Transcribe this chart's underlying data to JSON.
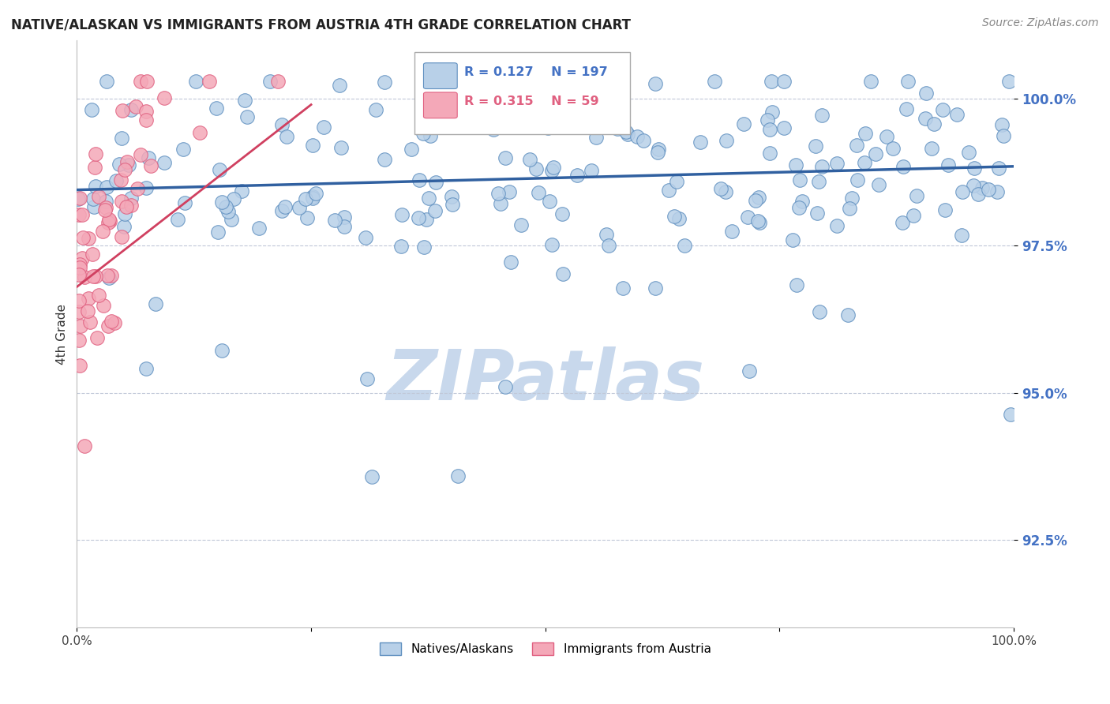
{
  "title": "NATIVE/ALASKAN VS IMMIGRANTS FROM AUSTRIA 4TH GRADE CORRELATION CHART",
  "source": "Source: ZipAtlas.com",
  "ylabel": "4th Grade",
  "xlim": [
    0.0,
    1.0
  ],
  "ylim": [
    0.91,
    1.01
  ],
  "yticks": [
    0.925,
    0.95,
    0.975,
    1.0
  ],
  "ytick_labels": [
    "92.5%",
    "95.0%",
    "97.5%",
    "100.0%"
  ],
  "xtick_labels_left": "0.0%",
  "xtick_labels_right": "100.0%",
  "blue_R": 0.127,
  "blue_N": 197,
  "pink_R": 0.315,
  "pink_N": 59,
  "blue_color": "#b8d0e8",
  "pink_color": "#f4a8b8",
  "blue_edge_color": "#6090c0",
  "pink_edge_color": "#e06080",
  "blue_line_color": "#3060a0",
  "pink_line_color": "#d04060",
  "tick_label_color": "#4472c4",
  "legend_label_blue": "Natives/Alaskans",
  "legend_label_pink": "Immigrants from Austria",
  "watermark_text": "ZIPatlas",
  "watermark_color": "#c8d8ec",
  "background_color": "#ffffff",
  "grid_color": "#c0c8d8",
  "title_color": "#222222",
  "source_color": "#888888",
  "blue_trend_start_y": 0.9845,
  "blue_trend_end_y": 0.9885,
  "pink_trend_start_x": 0.0,
  "pink_trend_start_y": 0.968,
  "pink_trend_end_x": 0.25,
  "pink_trend_end_y": 0.999
}
